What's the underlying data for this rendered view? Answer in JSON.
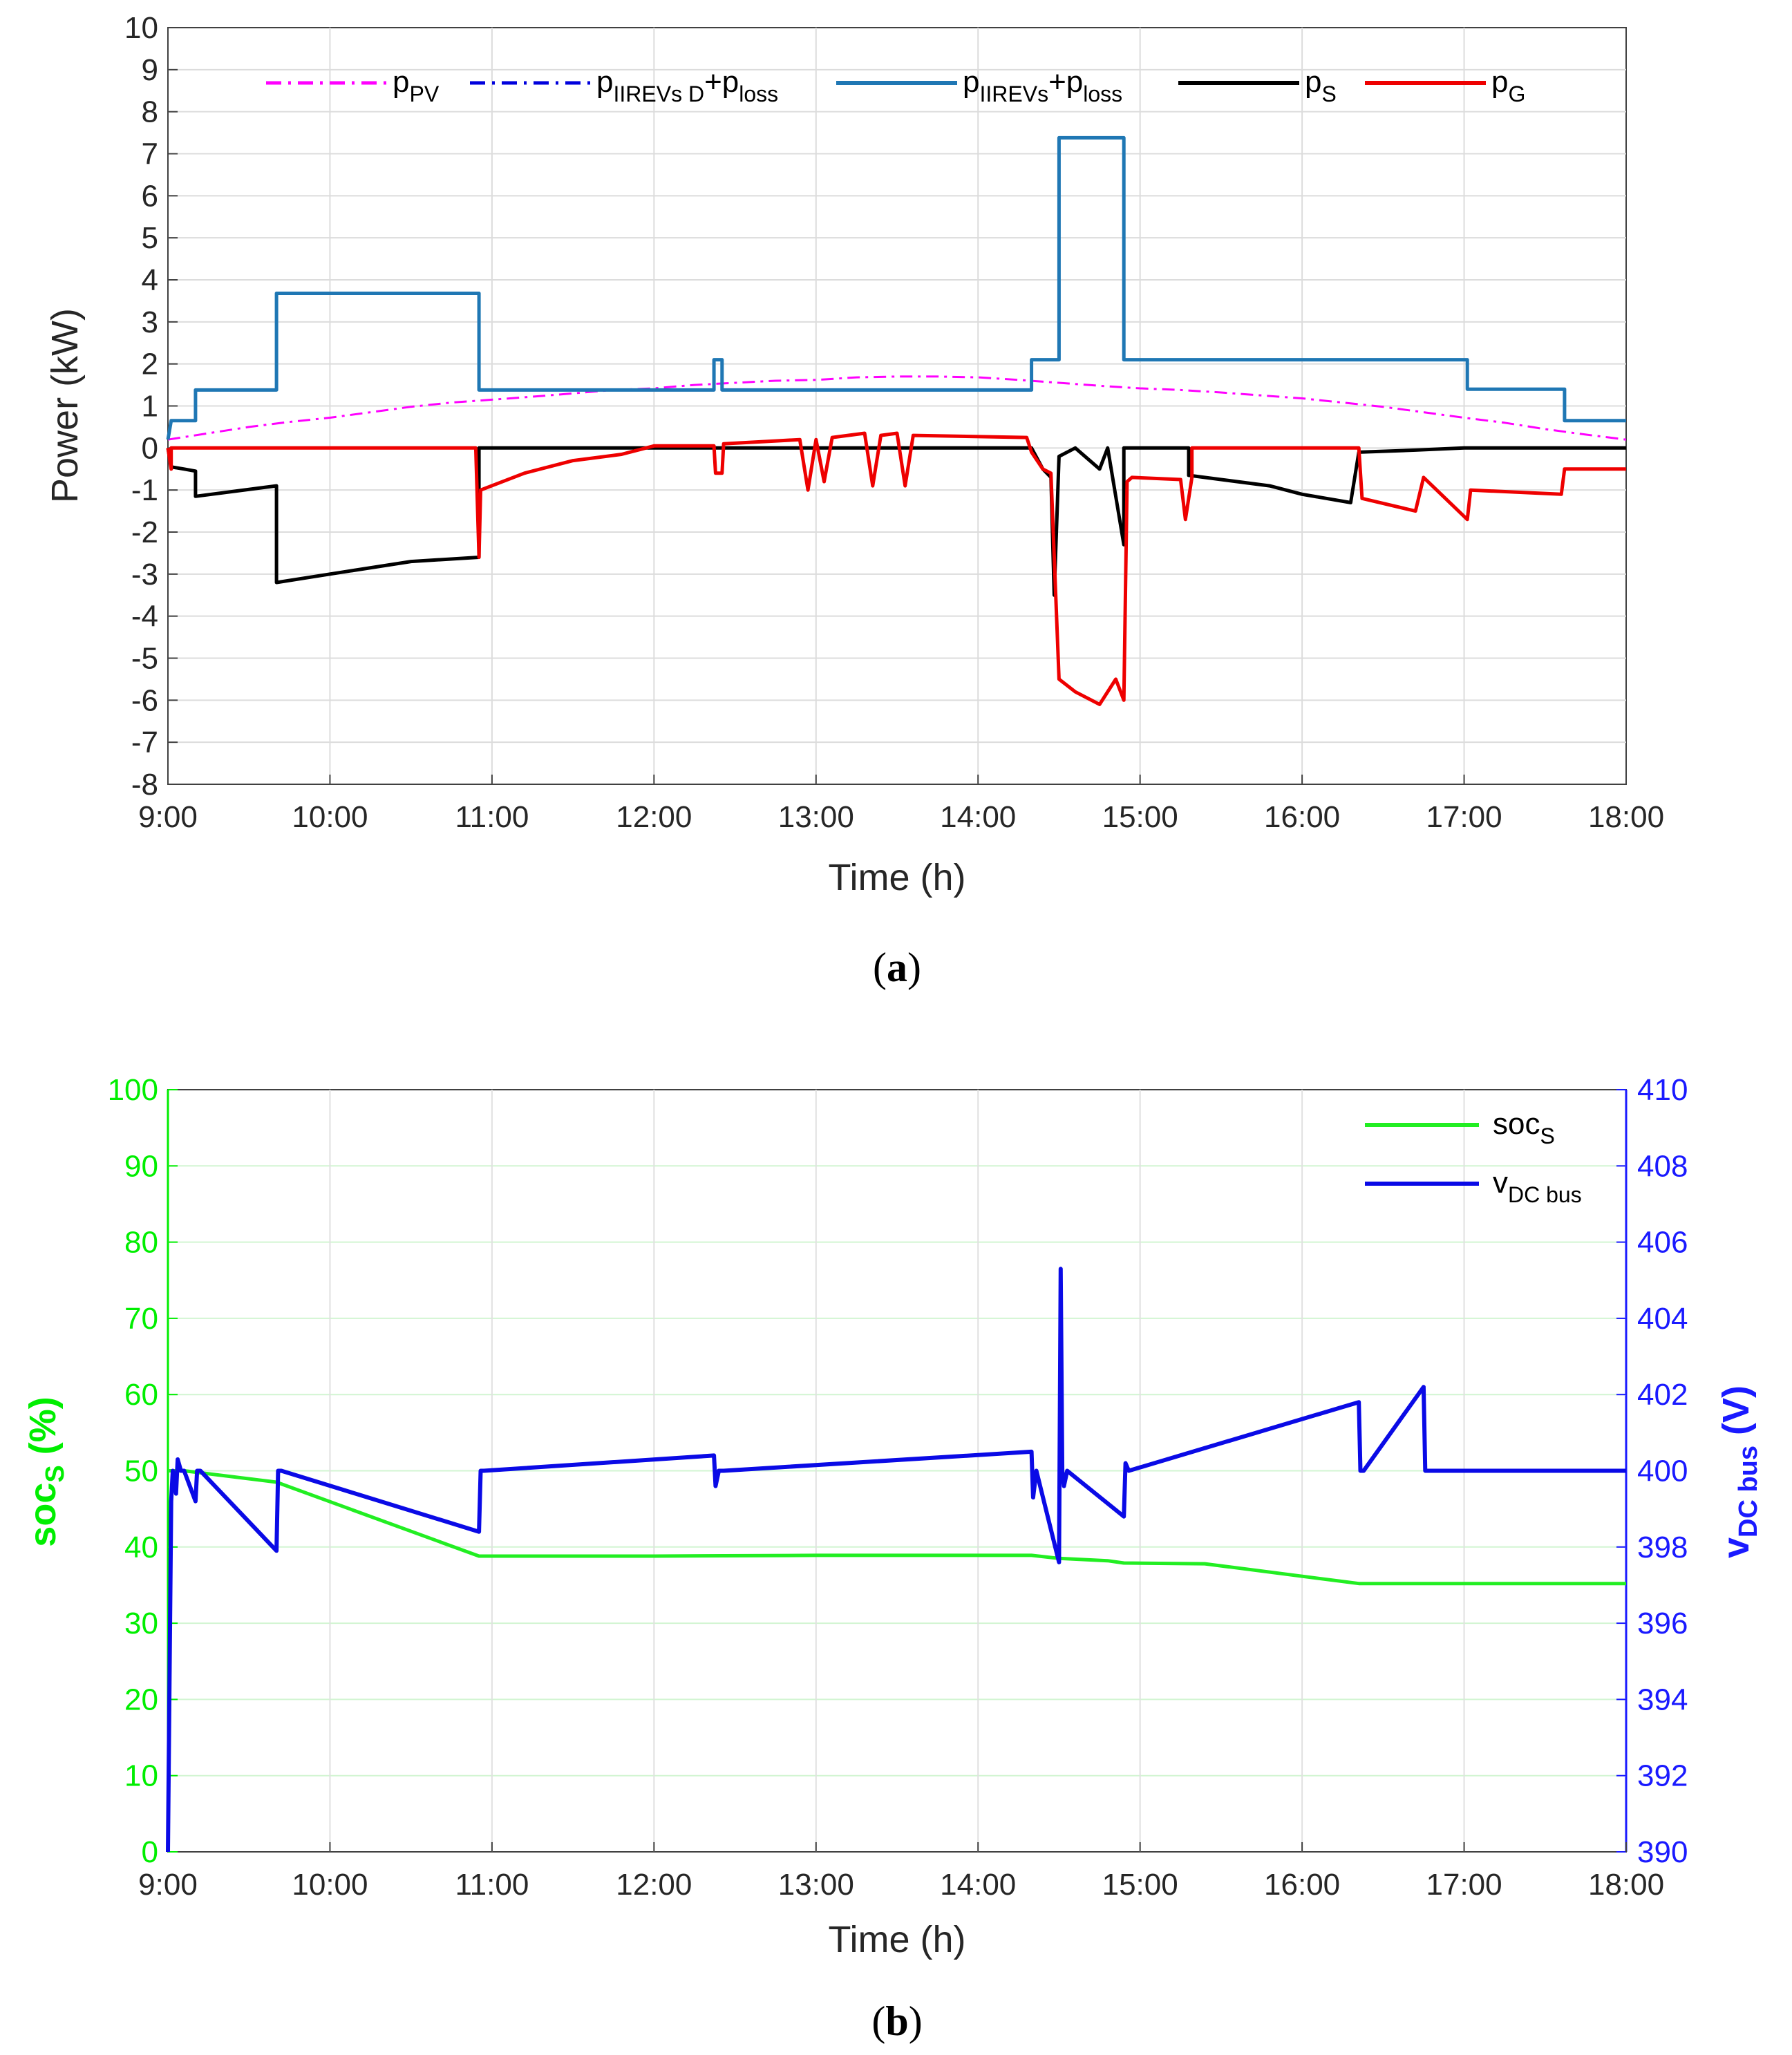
{
  "chart_data": [
    {
      "id": "a",
      "type": "line",
      "caption_letter": "a",
      "xlabel": "Time (h)",
      "ylabel": "Power (kW)",
      "xlim": [
        9,
        18
      ],
      "ylim": [
        -8,
        10
      ],
      "x_ticks": [
        "9:00",
        "10:00",
        "11:00",
        "12:00",
        "13:00",
        "14:00",
        "15:00",
        "16:00",
        "17:00",
        "18:00"
      ],
      "y_ticks": [
        "10",
        "9",
        "8",
        "7",
        "6",
        "5",
        "4",
        "3",
        "2",
        "1",
        "0",
        "-1",
        "-2",
        "-3",
        "-4",
        "-5",
        "-6",
        "-7",
        "-8"
      ],
      "grid": true,
      "legend_position": "top",
      "series": [
        {
          "name": "p_PV",
          "label_main": "p",
          "label_sub": "PV",
          "color": "#ff00ff",
          "style": "dashdot",
          "x": [
            9.0,
            9.25,
            9.5,
            9.75,
            10.0,
            10.25,
            10.5,
            10.75,
            11.0,
            11.25,
            11.5,
            11.75,
            12.0,
            12.25,
            12.5,
            12.75,
            13.0,
            13.25,
            13.5,
            13.75,
            14.0,
            14.25,
            14.5,
            14.75,
            15.0,
            15.25,
            15.5,
            15.75,
            16.0,
            16.25,
            16.5,
            16.75,
            17.0,
            17.25,
            17.5,
            17.75,
            18.0
          ],
          "values": [
            0.2,
            0.35,
            0.5,
            0.62,
            0.72,
            0.85,
            0.98,
            1.08,
            1.15,
            1.22,
            1.3,
            1.38,
            1.42,
            1.5,
            1.55,
            1.6,
            1.62,
            1.68,
            1.7,
            1.7,
            1.68,
            1.62,
            1.55,
            1.48,
            1.42,
            1.38,
            1.32,
            1.25,
            1.18,
            1.08,
            0.98,
            0.85,
            0.72,
            0.6,
            0.45,
            0.32,
            0.2
          ]
        },
        {
          "name": "p_IIREVs D+p_loss",
          "label_main": "p",
          "label_sub": "IIREVs D",
          "label_plus": "+p",
          "label_sub2": "loss",
          "color": "#0000dd",
          "style": "dashdot",
          "x": [],
          "values": []
        },
        {
          "name": "p_IIREVs+p_loss",
          "label_main": "p",
          "label_sub": "IIREVs",
          "label_plus": "+p",
          "label_sub2": "loss",
          "color": "#1f77b4",
          "style": "solid",
          "x": [
            9.0,
            9.02,
            9.02,
            9.17,
            9.17,
            9.67,
            9.67,
            10.92,
            10.92,
            12.37,
            12.37,
            12.42,
            12.42,
            14.33,
            14.33,
            14.5,
            14.5,
            14.9,
            14.9,
            17.02,
            17.02,
            17.62,
            17.62,
            18.0
          ],
          "values": [
            0.2,
            0.65,
            0.65,
            0.65,
            1.38,
            1.38,
            3.68,
            3.68,
            1.38,
            1.38,
            2.1,
            2.1,
            1.38,
            1.38,
            2.1,
            2.1,
            7.38,
            7.38,
            2.1,
            2.1,
            1.4,
            1.4,
            0.65,
            0.65
          ]
        },
        {
          "name": "p_S",
          "label_main": "p",
          "label_sub": "S",
          "color": "#000000",
          "style": "solid",
          "x": [
            9.0,
            9.02,
            9.1,
            9.17,
            9.17,
            9.67,
            9.67,
            10.0,
            10.5,
            10.92,
            10.92,
            12.0,
            14.33,
            14.4,
            14.45,
            14.47,
            14.5,
            14.6,
            14.75,
            14.8,
            14.9,
            14.9,
            15.3,
            15.3,
            15.5,
            15.8,
            16.0,
            16.3,
            16.35,
            16.7,
            17.0,
            17.5,
            18.0
          ],
          "values": [
            0.0,
            -0.45,
            -0.5,
            -0.55,
            -1.15,
            -0.9,
            -3.2,
            -3.0,
            -2.7,
            -2.6,
            0.0,
            0.0,
            0.0,
            -0.5,
            -0.7,
            -3.5,
            -0.2,
            0.0,
            -0.5,
            0.0,
            -2.3,
            0.0,
            0.0,
            -0.65,
            -0.75,
            -0.9,
            -1.1,
            -1.3,
            -0.1,
            -0.05,
            0.0,
            0.0,
            0.0
          ]
        },
        {
          "name": "p_G",
          "label_main": "p",
          "label_sub": "G",
          "color": "#ee0000",
          "style": "solid",
          "x": [
            9.0,
            9.02,
            9.02,
            10.9,
            10.92,
            10.93,
            11.2,
            11.5,
            11.8,
            12.0,
            12.37,
            12.38,
            12.42,
            12.43,
            12.9,
            12.95,
            13.0,
            13.05,
            13.1,
            13.3,
            13.35,
            13.4,
            13.5,
            13.55,
            13.6,
            14.3,
            14.33,
            14.4,
            14.45,
            14.5,
            14.6,
            14.75,
            14.85,
            14.9,
            14.92,
            14.95,
            15.25,
            15.28,
            15.32,
            15.32,
            16.35,
            16.37,
            16.7,
            16.75,
            17.02,
            17.04,
            17.6,
            17.62,
            18.0
          ],
          "values": [
            0.0,
            -0.5,
            0.0,
            0.0,
            -2.6,
            -1.0,
            -0.6,
            -0.3,
            -0.15,
            0.05,
            0.05,
            -0.6,
            -0.6,
            0.1,
            0.2,
            -1.0,
            0.2,
            -0.8,
            0.25,
            0.35,
            -0.9,
            0.3,
            0.35,
            -0.9,
            0.3,
            0.25,
            -0.1,
            -0.5,
            -0.6,
            -5.5,
            -5.8,
            -6.1,
            -5.5,
            -6.0,
            -0.8,
            -0.7,
            -0.75,
            -1.7,
            -0.7,
            0.0,
            0.0,
            -1.2,
            -1.5,
            -0.7,
            -1.7,
            -1.0,
            -1.1,
            -0.5,
            -0.5
          ]
        }
      ]
    },
    {
      "id": "b",
      "type": "line",
      "caption_letter": "b",
      "xlabel": "Time (h)",
      "ylabel_left_main": "soc",
      "ylabel_left_sub": "S",
      "ylabel_left_unit": " (%)",
      "ylabel_right_main": "v",
      "ylabel_right_sub": "DC bus",
      "ylabel_right_unit": " (V)",
      "xlim": [
        9,
        18
      ],
      "ylim_left": [
        0,
        100
      ],
      "ylim_right": [
        390,
        410
      ],
      "x_ticks": [
        "9:00",
        "10:00",
        "11:00",
        "12:00",
        "13:00",
        "14:00",
        "15:00",
        "16:00",
        "17:00",
        "18:00"
      ],
      "y_ticks_left": [
        "100",
        "90",
        "80",
        "70",
        "60",
        "50",
        "40",
        "30",
        "20",
        "10",
        "0"
      ],
      "y_ticks_right": [
        "410",
        "408",
        "406",
        "404",
        "402",
        "400",
        "398",
        "396",
        "394",
        "392",
        "390"
      ],
      "grid": true,
      "legend_position": "top-right",
      "series": [
        {
          "name": "soc_S",
          "label_main": "soc",
          "label_sub": "S",
          "color": "#22ee22",
          "axis": "left",
          "x": [
            9.0,
            9.1,
            9.67,
            10.92,
            12.0,
            13.0,
            14.33,
            14.5,
            14.8,
            14.9,
            15.4,
            16.35,
            17.0,
            18.0
          ],
          "values": [
            50.0,
            50.0,
            48.5,
            38.8,
            38.8,
            38.9,
            38.9,
            38.5,
            38.2,
            37.9,
            37.8,
            35.2,
            35.2,
            35.2
          ]
        },
        {
          "name": "v_DC bus",
          "label_main": "v",
          "label_sub": "DC bus",
          "color": "#0a0ae6",
          "axis": "right",
          "x": [
            9.0,
            9.02,
            9.03,
            9.05,
            9.06,
            9.08,
            9.1,
            9.17,
            9.18,
            9.2,
            9.67,
            9.68,
            9.7,
            10.92,
            10.93,
            10.95,
            12.37,
            12.38,
            12.4,
            12.42,
            12.43,
            14.33,
            14.34,
            14.36,
            14.5,
            14.51,
            14.52,
            14.53,
            14.55,
            14.9,
            14.91,
            14.93,
            16.35,
            16.36,
            16.38,
            16.75,
            16.76,
            16.78,
            18.0
          ],
          "values": [
            390.0,
            399.2,
            400.0,
            399.4,
            400.3,
            400.0,
            400.0,
            399.2,
            400.0,
            400.0,
            397.9,
            400.0,
            400.0,
            398.4,
            400.0,
            400.0,
            400.4,
            399.6,
            400.0,
            400.0,
            400.0,
            400.5,
            399.3,
            400.0,
            397.6,
            405.3,
            400.0,
            399.6,
            400.0,
            398.8,
            400.2,
            400.0,
            401.8,
            400.0,
            400.0,
            402.2,
            400.0,
            400.0,
            400.0
          ]
        }
      ]
    }
  ]
}
